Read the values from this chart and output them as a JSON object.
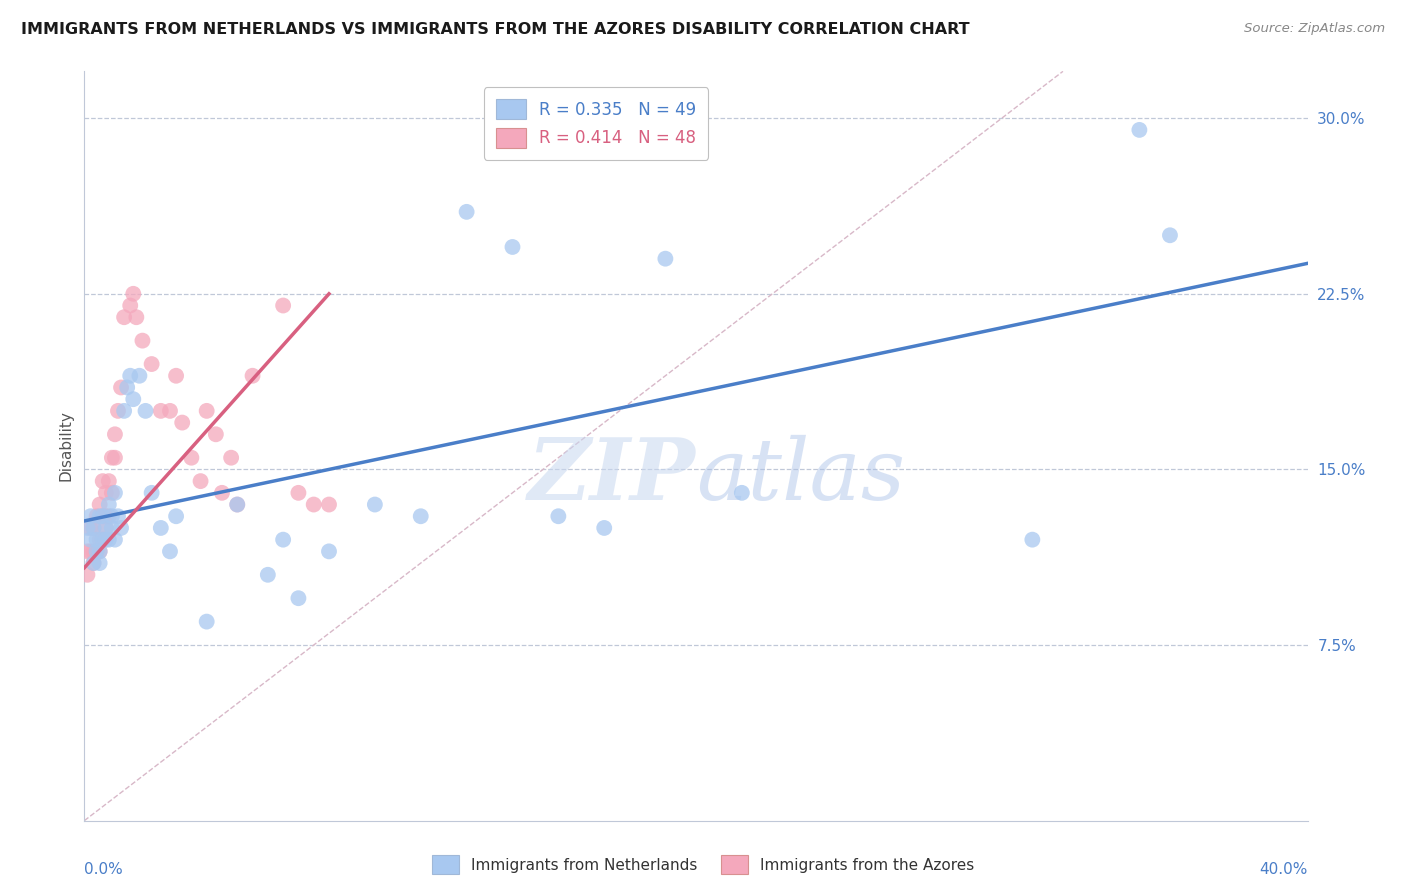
{
  "title": "IMMIGRANTS FROM NETHERLANDS VS IMMIGRANTS FROM THE AZORES DISABILITY CORRELATION CHART",
  "source": "Source: ZipAtlas.com",
  "ylabel": "Disability",
  "ytick_values": [
    0.075,
    0.15,
    0.225,
    0.3
  ],
  "xlim": [
    0,
    0.4
  ],
  "ylim": [
    0.0,
    0.32
  ],
  "color_netherlands": "#A8C8F0",
  "color_azores": "#F4A8BC",
  "color_regression_netherlands": "#4A7EC8",
  "color_regression_azores": "#D86080",
  "color_diagonal": "#C8C8D8",
  "watermark_zip": "ZIP",
  "watermark_atlas": "atlas",
  "netherlands_x": [
    0.001,
    0.002,
    0.002,
    0.003,
    0.003,
    0.004,
    0.004,
    0.005,
    0.005,
    0.005,
    0.006,
    0.006,
    0.007,
    0.007,
    0.008,
    0.008,
    0.009,
    0.009,
    0.01,
    0.01,
    0.011,
    0.012,
    0.013,
    0.014,
    0.015,
    0.016,
    0.018,
    0.02,
    0.022,
    0.025,
    0.028,
    0.03,
    0.04,
    0.05,
    0.06,
    0.065,
    0.07,
    0.08,
    0.095,
    0.11,
    0.125,
    0.14,
    0.155,
    0.17,
    0.19,
    0.215,
    0.31,
    0.345,
    0.355
  ],
  "netherlands_y": [
    0.125,
    0.13,
    0.12,
    0.125,
    0.11,
    0.115,
    0.12,
    0.13,
    0.115,
    0.11,
    0.12,
    0.13,
    0.125,
    0.12,
    0.135,
    0.12,
    0.125,
    0.13,
    0.14,
    0.12,
    0.13,
    0.125,
    0.175,
    0.185,
    0.19,
    0.18,
    0.19,
    0.175,
    0.14,
    0.125,
    0.115,
    0.13,
    0.085,
    0.135,
    0.105,
    0.12,
    0.095,
    0.115,
    0.135,
    0.13,
    0.26,
    0.245,
    0.13,
    0.125,
    0.24,
    0.14,
    0.12,
    0.295,
    0.25
  ],
  "azores_x": [
    0.001,
    0.001,
    0.002,
    0.002,
    0.003,
    0.003,
    0.003,
    0.004,
    0.004,
    0.005,
    0.005,
    0.005,
    0.006,
    0.006,
    0.006,
    0.007,
    0.007,
    0.007,
    0.008,
    0.008,
    0.009,
    0.009,
    0.01,
    0.01,
    0.011,
    0.012,
    0.013,
    0.015,
    0.016,
    0.017,
    0.019,
    0.022,
    0.025,
    0.028,
    0.03,
    0.032,
    0.035,
    0.038,
    0.04,
    0.043,
    0.045,
    0.048,
    0.05,
    0.055,
    0.065,
    0.07,
    0.075,
    0.08
  ],
  "azores_y": [
    0.115,
    0.105,
    0.125,
    0.115,
    0.115,
    0.11,
    0.125,
    0.13,
    0.115,
    0.135,
    0.12,
    0.115,
    0.13,
    0.145,
    0.12,
    0.14,
    0.13,
    0.125,
    0.145,
    0.13,
    0.155,
    0.14,
    0.165,
    0.155,
    0.175,
    0.185,
    0.215,
    0.22,
    0.225,
    0.215,
    0.205,
    0.195,
    0.175,
    0.175,
    0.19,
    0.17,
    0.155,
    0.145,
    0.175,
    0.165,
    0.14,
    0.155,
    0.135,
    0.19,
    0.22,
    0.14,
    0.135,
    0.135
  ],
  "nl_line_x0": 0.0,
  "nl_line_x1": 0.4,
  "nl_line_y0": 0.128,
  "nl_line_y1": 0.238,
  "az_line_x0": 0.0,
  "az_line_x1": 0.08,
  "az_line_y0": 0.108,
  "az_line_y1": 0.225
}
